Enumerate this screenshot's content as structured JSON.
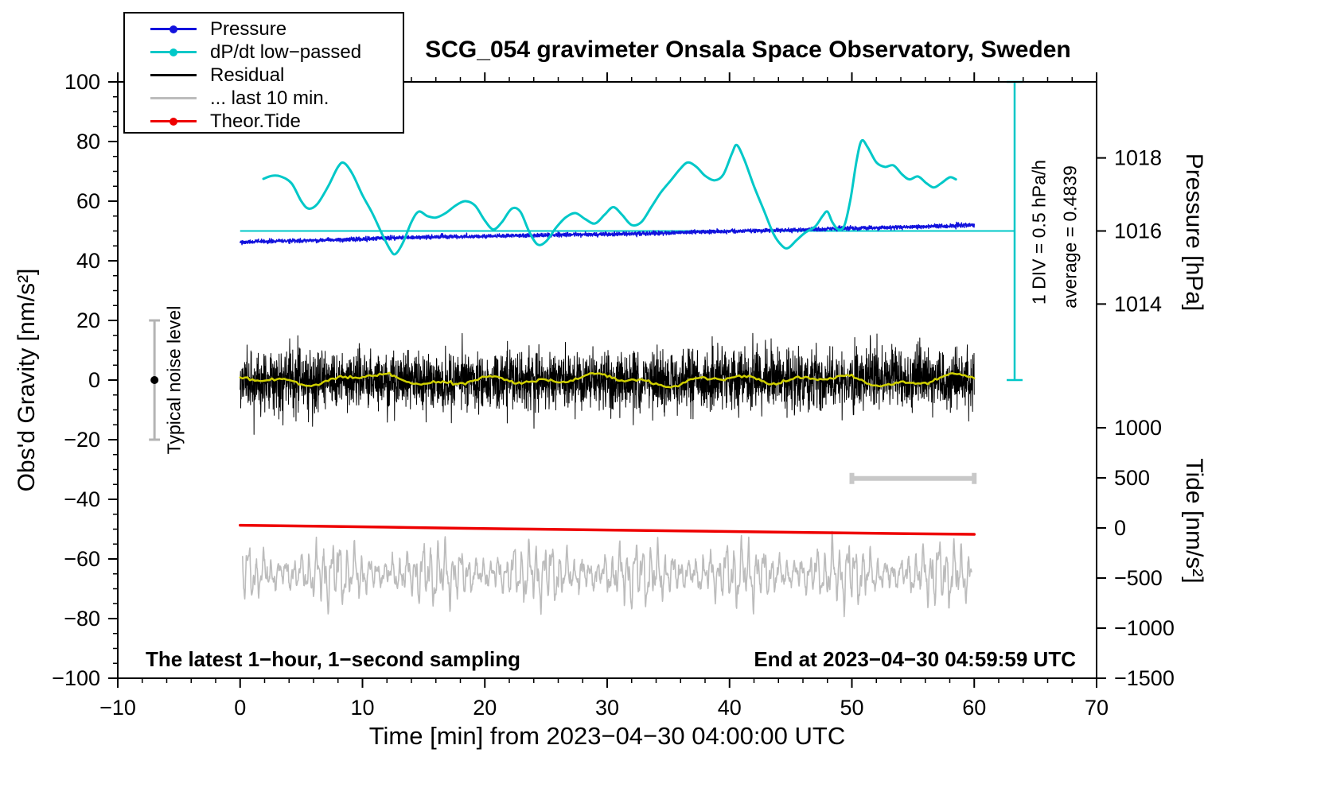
{
  "title": "SCG_054 gravimeter Onsala Space Observatory, Sweden",
  "legend": {
    "items": [
      {
        "label": "Pressure",
        "color": "#1212dd",
        "marker": true
      },
      {
        "label": "dP/dt low−passed",
        "color": "#00c8c8",
        "marker": true
      },
      {
        "label": "Residual",
        "color": "#000000",
        "marker": false
      },
      {
        "label": "... last 10 min.",
        "color": "#bcbcbc",
        "marker": false
      },
      {
        "label": "Theor.Tide",
        "color": "#ee0000",
        "marker": true
      }
    ]
  },
  "annotations": {
    "noise_label": "Typical noise level",
    "div_label": "1 DIV = 0.5 hPa/h",
    "avg_label": "average = 0.4839",
    "sampling_note": "The latest 1−hour, 1−second sampling",
    "end_note": "End at 2023−04−30 04:59:59 UTC"
  },
  "chart_data": {
    "type": "line",
    "title": "SCG_054 gravimeter Onsala Space Observatory, Sweden",
    "xlabel": "Time [min] from 2023−04−30 04:00:00 UTC",
    "ylabel_left": "Obs'd Gravity [nm/s²]",
    "ylabel_right_top": "Pressure [hPa]",
    "ylabel_right_bottom": "Tide [nm/s²]",
    "xlim": [
      -10,
      70
    ],
    "ylim": [
      -100,
      100
    ],
    "x_major_ticks": [
      -10,
      0,
      10,
      20,
      30,
      40,
      50,
      60,
      70
    ],
    "x_tick_labels": [
      "−10",
      "0",
      "10",
      "20",
      "30",
      "40",
      "50",
      "60",
      "70"
    ],
    "x_minor_step": 2,
    "y_major_ticks": [
      -100,
      -80,
      -60,
      -40,
      -20,
      0,
      20,
      40,
      60,
      80,
      100
    ],
    "y_tick_labels": [
      "−100",
      "−80",
      "−60",
      "−40",
      "−20",
      "0",
      "20",
      "40",
      "60",
      "80",
      "100"
    ],
    "y_minor_step": 5,
    "pressure_axis": {
      "unit": "hPa",
      "gravity_at_1016": 50,
      "gravity_per_hpa": 12.25,
      "ticks": [
        1018,
        1016,
        1014
      ],
      "tick_labels": [
        "1018",
        "1016",
        "1014"
      ]
    },
    "tide_axis": {
      "unit": "nm/s²",
      "gravity_per_500": 16.8,
      "ticks": [
        1000,
        500,
        0,
        -500,
        -1000,
        -1500
      ],
      "tick_labels": [
        "1000",
        "500",
        "0",
        "−500",
        "−1000",
        "−1500"
      ]
    },
    "colors": {
      "pressure": "#1212dd",
      "dpdt": "#00c8c8",
      "residual": "#000000",
      "residual_lowpass": "#cfcf00",
      "last10": "#bcbcbc",
      "tide": "#ee0000",
      "frame": "#000000",
      "noise_bar": "#b4b4b4",
      "scale_bar": "#c8c8c8"
    },
    "series": {
      "pressure_trend": [
        [
          0,
          46.3
        ],
        [
          3,
          46.6
        ],
        [
          6,
          46.8
        ],
        [
          10,
          47.3
        ],
        [
          14,
          47.8
        ],
        [
          18,
          48.1
        ],
        [
          22,
          48.4
        ],
        [
          26,
          48.7
        ],
        [
          30,
          48.9
        ],
        [
          34,
          49.2
        ],
        [
          38,
          49.7
        ],
        [
          42,
          50.1
        ],
        [
          46,
          50.4
        ],
        [
          50,
          50.9
        ],
        [
          54,
          51.3
        ],
        [
          57,
          51.6
        ],
        [
          60,
          52.0
        ]
      ],
      "pressure_noise_sd": 0.32,
      "pressure_noise_seed": 2024,
      "dpdt_lowpassed": [
        [
          1.9,
          67.5
        ],
        [
          2.6,
          68.5
        ],
        [
          3.3,
          68.3
        ],
        [
          4.2,
          66.0
        ],
        [
          5.0,
          60.0
        ],
        [
          5.6,
          57.5
        ],
        [
          6.3,
          59.0
        ],
        [
          7.2,
          65.0
        ],
        [
          8.0,
          71.5
        ],
        [
          8.5,
          72.8
        ],
        [
          9.2,
          69.0
        ],
        [
          10.0,
          62.0
        ],
        [
          10.8,
          56.0
        ],
        [
          11.6,
          49.0
        ],
        [
          12.3,
          43.5
        ],
        [
          12.7,
          42.3
        ],
        [
          13.3,
          46.0
        ],
        [
          14.0,
          53.0
        ],
        [
          14.6,
          56.5
        ],
        [
          15.3,
          55.0
        ],
        [
          16.0,
          54.5
        ],
        [
          16.8,
          56.0
        ],
        [
          17.6,
          58.5
        ],
        [
          18.4,
          60.0
        ],
        [
          19.2,
          58.5
        ],
        [
          20.0,
          53.5
        ],
        [
          20.7,
          50.5
        ],
        [
          21.4,
          53.0
        ],
        [
          22.2,
          57.5
        ],
        [
          22.9,
          56.5
        ],
        [
          23.6,
          50.0
        ],
        [
          24.3,
          45.5
        ],
        [
          25.0,
          46.5
        ],
        [
          25.8,
          51.0
        ],
        [
          26.6,
          54.5
        ],
        [
          27.4,
          56.0
        ],
        [
          28.2,
          54.0
        ],
        [
          29.0,
          52.5
        ],
        [
          29.8,
          55.5
        ],
        [
          30.5,
          58.0
        ],
        [
          31.2,
          55.5
        ],
        [
          32.0,
          52.0
        ],
        [
          32.8,
          53.0
        ],
        [
          33.6,
          58.0
        ],
        [
          34.4,
          63.0
        ],
        [
          35.2,
          67.0
        ],
        [
          36.0,
          71.0
        ],
        [
          36.6,
          73.0
        ],
        [
          37.3,
          71.5
        ],
        [
          38.0,
          68.5
        ],
        [
          38.8,
          67.0
        ],
        [
          39.5,
          69.0
        ],
        [
          40.2,
          76.0
        ],
        [
          40.6,
          78.8
        ],
        [
          41.2,
          74.0
        ],
        [
          42.0,
          65.0
        ],
        [
          42.8,
          57.0
        ],
        [
          43.6,
          49.0
        ],
        [
          44.3,
          45.0
        ],
        [
          44.8,
          44.3
        ],
        [
          45.5,
          47.0
        ],
        [
          46.2,
          49.5
        ],
        [
          47.0,
          51.5
        ],
        [
          47.6,
          55.0
        ],
        [
          48.0,
          56.5
        ],
        [
          48.4,
          53.0
        ],
        [
          48.9,
          50.5
        ],
        [
          49.4,
          52.0
        ],
        [
          49.9,
          61.0
        ],
        [
          50.4,
          74.0
        ],
        [
          50.8,
          80.3
        ],
        [
          51.3,
          78.0
        ],
        [
          52.0,
          73.0
        ],
        [
          52.7,
          71.5
        ],
        [
          53.4,
          72.0
        ],
        [
          54.1,
          69.0
        ],
        [
          54.7,
          67.3
        ],
        [
          55.4,
          68.3
        ],
        [
          56.1,
          66.0
        ],
        [
          56.7,
          64.6
        ],
        [
          57.3,
          66.0
        ],
        [
          58.0,
          68.0
        ],
        [
          58.5,
          67.3
        ]
      ],
      "reference_line": {
        "gravity": 50,
        "x0": 0,
        "x1": 63.3
      },
      "div_ruler": {
        "x": 63.3,
        "g0": 0,
        "g1": 100,
        "cap_halfwidth": 0.65
      },
      "residual_noise": {
        "x0": 0,
        "x1": 60,
        "samples_per_min": 60,
        "sd": 4.8,
        "spike_prob": 0.008,
        "spike_gain": 1.9,
        "clip": 21.5,
        "seed": 1234
      },
      "residual_lowpass": {
        "x0": 0,
        "x1": 60,
        "step": 0.2,
        "harmonics": [
          [
            1.1,
            9.5,
            0.7
          ],
          [
            0.8,
            4.2,
            2.4
          ],
          [
            0.6,
            17.0,
            4.1
          ]
        ],
        "noise_sd": 0.25,
        "seed": 99
      },
      "last10_residual": {
        "x0": 0.2,
        "x1": 59.8,
        "step": 0.03,
        "center": -65,
        "harmonics": [
          [
            4.6,
            0.62,
            1.0
          ],
          [
            2.7,
            0.285,
            3.1
          ],
          [
            1.9,
            1.45,
            5.2
          ],
          [
            1.2,
            0.155,
            0.4
          ]
        ],
        "mod_amp": 0.45,
        "mod_period": 8.3,
        "mod_phase": 2.0,
        "noise_sd": 0.7,
        "seed": 77
      },
      "theor_tide": [
        [
          0,
          -48.7
        ],
        [
          6,
          -49.0
        ],
        [
          12,
          -49.35
        ],
        [
          18,
          -49.7
        ],
        [
          24,
          -50.0
        ],
        [
          30,
          -50.3
        ],
        [
          36,
          -50.6
        ],
        [
          42,
          -50.9
        ],
        [
          48,
          -51.2
        ],
        [
          54,
          -51.5
        ],
        [
          60,
          -51.75
        ]
      ],
      "noise_level_bar": {
        "x": -7,
        "g0": -20,
        "g1": 20,
        "cap_halfwidth": 0.45,
        "dot_gravity": 0
      },
      "last10_scale_bar": {
        "x0": 50,
        "x1": 60,
        "gravity": -33
      }
    }
  }
}
